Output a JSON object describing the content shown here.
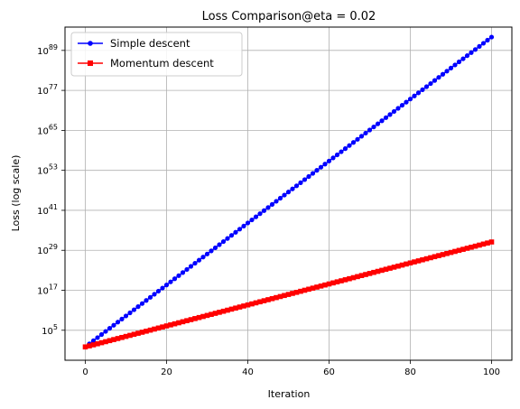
{
  "chart_data": {
    "type": "line",
    "title": "Loss Comparison@eta = 0.02",
    "xlabel": "Iteration",
    "ylabel": "Loss (log scale)",
    "x_range": [
      0,
      100
    ],
    "xlim": [
      -5,
      105
    ],
    "ylim_log10": [
      -4,
      96
    ],
    "y_scale": "log",
    "grid": true,
    "legend_position": "top-left",
    "x_ticks": [
      0,
      20,
      40,
      60,
      80,
      100
    ],
    "y_ticks": [
      {
        "exp": 5,
        "base": "10",
        "sup": "5"
      },
      {
        "exp": 17,
        "base": "10",
        "sup": "17"
      },
      {
        "exp": 29,
        "base": "10",
        "sup": "29"
      },
      {
        "exp": 41,
        "base": "10",
        "sup": "41"
      },
      {
        "exp": 53,
        "base": "10",
        "sup": "53"
      },
      {
        "exp": 65,
        "base": "10",
        "sup": "65"
      },
      {
        "exp": 77,
        "base": "10",
        "sup": "77"
      },
      {
        "exp": 89,
        "base": "10",
        "sup": "89"
      }
    ],
    "series": [
      {
        "name": "Simple descent",
        "color": "#0000ff",
        "marker": "circle",
        "log10_start": 0,
        "log10_end": 93,
        "log10_start_x": 0
      },
      {
        "name": "Momentum descent",
        "color": "#ff0000",
        "marker": "square",
        "log10_start": 0,
        "log10_end": 31.5,
        "log10_start_x": 0
      }
    ]
  }
}
